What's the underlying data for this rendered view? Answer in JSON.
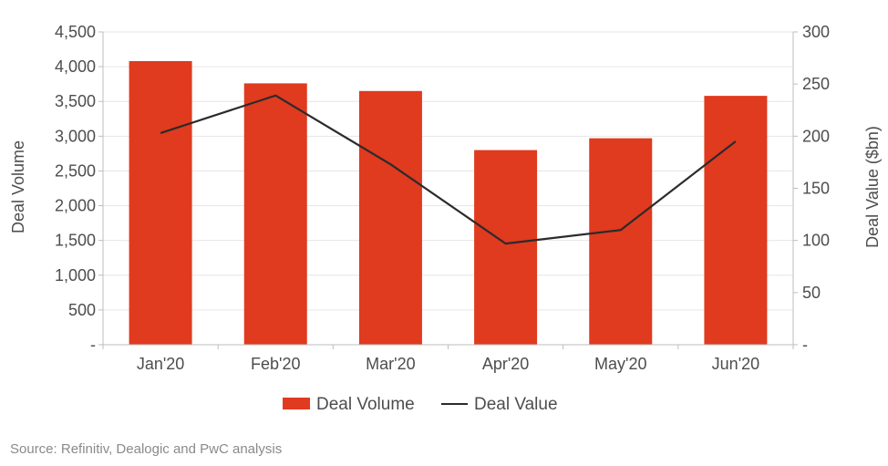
{
  "chart_data": {
    "type": "bar",
    "categories": [
      "Jan'20",
      "Feb'20",
      "Mar'20",
      "Apr'20",
      "May'20",
      "Jun'20"
    ],
    "series": [
      {
        "name": "Deal Volume",
        "type": "bar",
        "axis": "left",
        "color": "#e03a1f",
        "values": [
          4080,
          3760,
          3650,
          2800,
          2970,
          3580
        ]
      },
      {
        "name": "Deal Value",
        "type": "line",
        "axis": "right",
        "color": "#2b2b2b",
        "values": [
          203,
          239,
          173,
          97,
          110,
          195
        ]
      }
    ],
    "ylabel_left": "Deal Volume",
    "ylabel_right": "Deal Value ($bn)",
    "ylim_left": [
      0,
      4500
    ],
    "ylim_right": [
      0,
      300
    ],
    "yticks_left": [
      "-",
      "500",
      "1,000",
      "1,500",
      "2,000",
      "2,500",
      "3,000",
      "3,500",
      "4,000",
      "4,500"
    ],
    "yticks_right": [
      "-",
      "50",
      "100",
      "150",
      "200",
      "250",
      "300"
    ],
    "grid": true,
    "legend": "bottom-center"
  },
  "source": "Source: Refinitiv, Dealogic and PwC analysis"
}
